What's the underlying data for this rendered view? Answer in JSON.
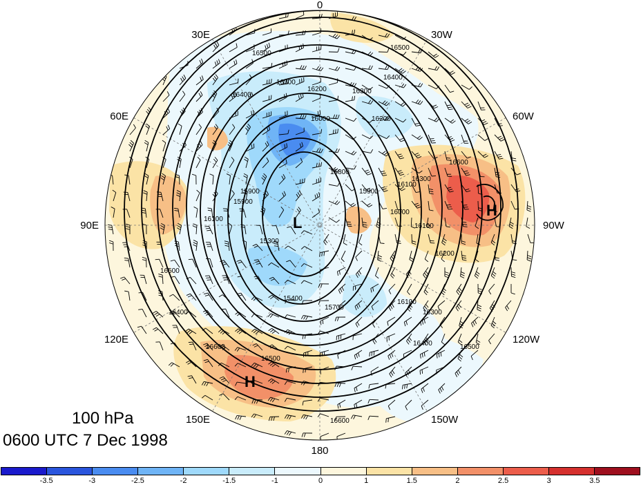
{
  "title": {
    "level": "100 hPa",
    "time": "0600 UTC 7 Dec 1998"
  },
  "longitude_labels": [
    "0",
    "30W",
    "60W",
    "90W",
    "120W",
    "150W",
    "180",
    "150E",
    "120E",
    "90E",
    "60E",
    "30E"
  ],
  "colorbar": {
    "colors": [
      "#1a1acc",
      "#2a55dd",
      "#4a8cf0",
      "#6fb4f6",
      "#9fd9fb",
      "#c9ecfb",
      "#ecf8fd",
      "#fdf6dd",
      "#fbe3a6",
      "#f7bf86",
      "#f29068",
      "#ec5d4b",
      "#d5302e",
      "#9e0f1e"
    ],
    "tick_labels": [
      "-3.5",
      "-3",
      "-2.5",
      "-2",
      "-1.5",
      "-1",
      "0",
      "1",
      "1.5",
      "2",
      "2.5",
      "3",
      "3.5"
    ]
  },
  "contour_labels": [
    "16500",
    "16500",
    "16400",
    "16300",
    "16300",
    "16200",
    "16200",
    "16400",
    "15900",
    "15800",
    "15900",
    "16100",
    "15300",
    "15400",
    "15700",
    "16000",
    "16100",
    "16300",
    "16400",
    "16500",
    "16600",
    "16500",
    "16400",
    "16600",
    "16100",
    "15900",
    "16300",
    "16500",
    "16100",
    "16200",
    "16000",
    "16600"
  ],
  "pressure_systems": [
    {
      "type": "L",
      "label": "L"
    },
    {
      "type": "H",
      "label": "H"
    },
    {
      "type": "H",
      "label": "H"
    }
  ],
  "colors": {
    "background": "#ffffff",
    "map_fill": "#fdf6dd",
    "contour": "#000000"
  }
}
